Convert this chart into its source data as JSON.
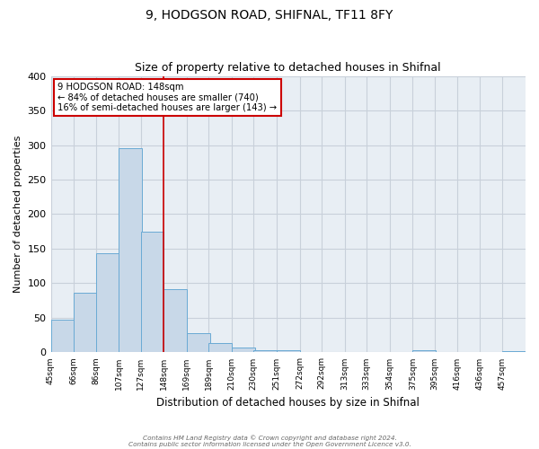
{
  "title": "9, HODGSON ROAD, SHIFNAL, TF11 8FY",
  "subtitle": "Size of property relative to detached houses in Shifnal",
  "xlabel": "Distribution of detached houses by size in Shifnal",
  "ylabel": "Number of detached properties",
  "bin_labels": [
    "45sqm",
    "66sqm",
    "86sqm",
    "107sqm",
    "127sqm",
    "148sqm",
    "169sqm",
    "189sqm",
    "210sqm",
    "230sqm",
    "251sqm",
    "272sqm",
    "292sqm",
    "313sqm",
    "333sqm",
    "354sqm",
    "375sqm",
    "395sqm",
    "416sqm",
    "436sqm",
    "457sqm"
  ],
  "bin_edges": [
    45,
    66,
    86,
    107,
    127,
    148,
    169,
    189,
    210,
    230,
    251,
    272,
    292,
    313,
    333,
    354,
    375,
    395,
    416,
    436,
    457
  ],
  "bin_width": 21,
  "bar_heights": [
    47,
    86,
    144,
    296,
    175,
    91,
    28,
    13,
    7,
    3,
    3,
    0,
    0,
    0,
    0,
    0,
    3,
    0,
    0,
    0,
    2
  ],
  "bar_color": "#c8d8e8",
  "bar_edge_color": "#6aaad4",
  "vline_x": 148,
  "vline_color": "#cc0000",
  "annotation_line1": "9 HODGSON ROAD: 148sqm",
  "annotation_line2": "← 84% of detached houses are smaller (740)",
  "annotation_line3": "16% of semi-detached houses are larger (143) →",
  "annotation_box_color": "#cc0000",
  "ylim": [
    0,
    400
  ],
  "yticks": [
    0,
    50,
    100,
    150,
    200,
    250,
    300,
    350,
    400
  ],
  "background_color": "#e8eef4",
  "grid_color": "#c8d0da",
  "footer_line1": "Contains HM Land Registry data © Crown copyright and database right 2024.",
  "footer_line2": "Contains public sector information licensed under the Open Government Licence v3.0."
}
